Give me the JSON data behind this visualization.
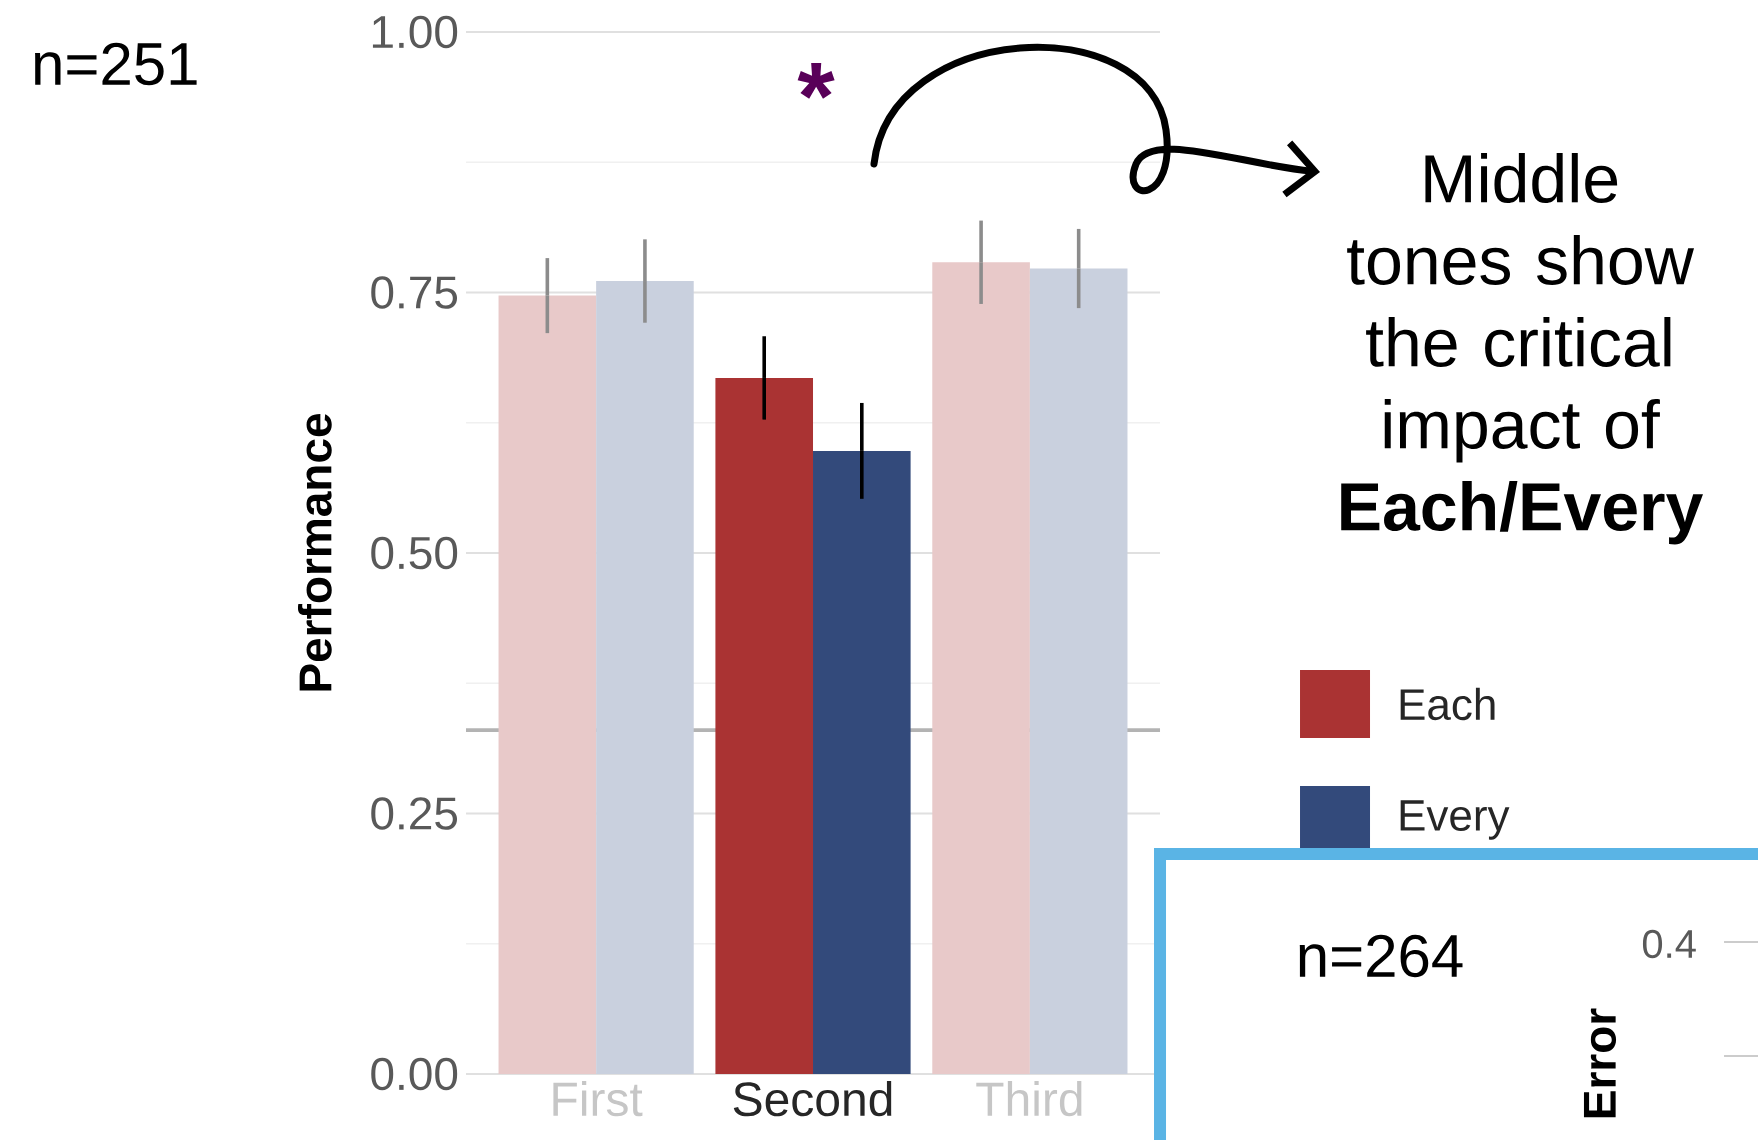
{
  "chart_data": [
    {
      "type": "bar",
      "ylabel": "Performance",
      "categories": [
        "First",
        "Second",
        "Third"
      ],
      "series": [
        {
          "name": "Each",
          "color": "#aa3333",
          "colors": [
            "#e8c9c9",
            "#aa3333",
            "#e8c9c9"
          ],
          "values": [
            0.747,
            0.668,
            0.779
          ],
          "errors": [
            0.036,
            0.04,
            0.04
          ]
        },
        {
          "name": "Every",
          "color": "#334a7b",
          "colors": [
            "#c9d0de",
            "#334a7b",
            "#c9d0de"
          ],
          "values": [
            0.761,
            0.598,
            0.773
          ],
          "errors": [
            0.04,
            0.046,
            0.038
          ]
        }
      ],
      "ylim": [
        0,
        1
      ],
      "yticks": [
        {
          "value": 0,
          "label": "0.00"
        },
        {
          "value": 0.25,
          "label": "0.25"
        },
        {
          "value": 0.5,
          "label": "0.50"
        },
        {
          "value": 0.75,
          "label": "0.75"
        },
        {
          "value": 1,
          "label": "1.00"
        }
      ],
      "grid": "y",
      "legend": "right",
      "ref_lines": [
        {
          "axis": "y",
          "value": 0.33,
          "color": "#b3b3b3"
        }
      ],
      "annotations": [
        "n=251",
        "*",
        "Middle tones show the critical impact of **Each/Every**"
      ]
    },
    {
      "type": "other",
      "ylabel": "Error",
      "annotations": [
        "n=264",
        "0.4"
      ]
    }
  ]
}
